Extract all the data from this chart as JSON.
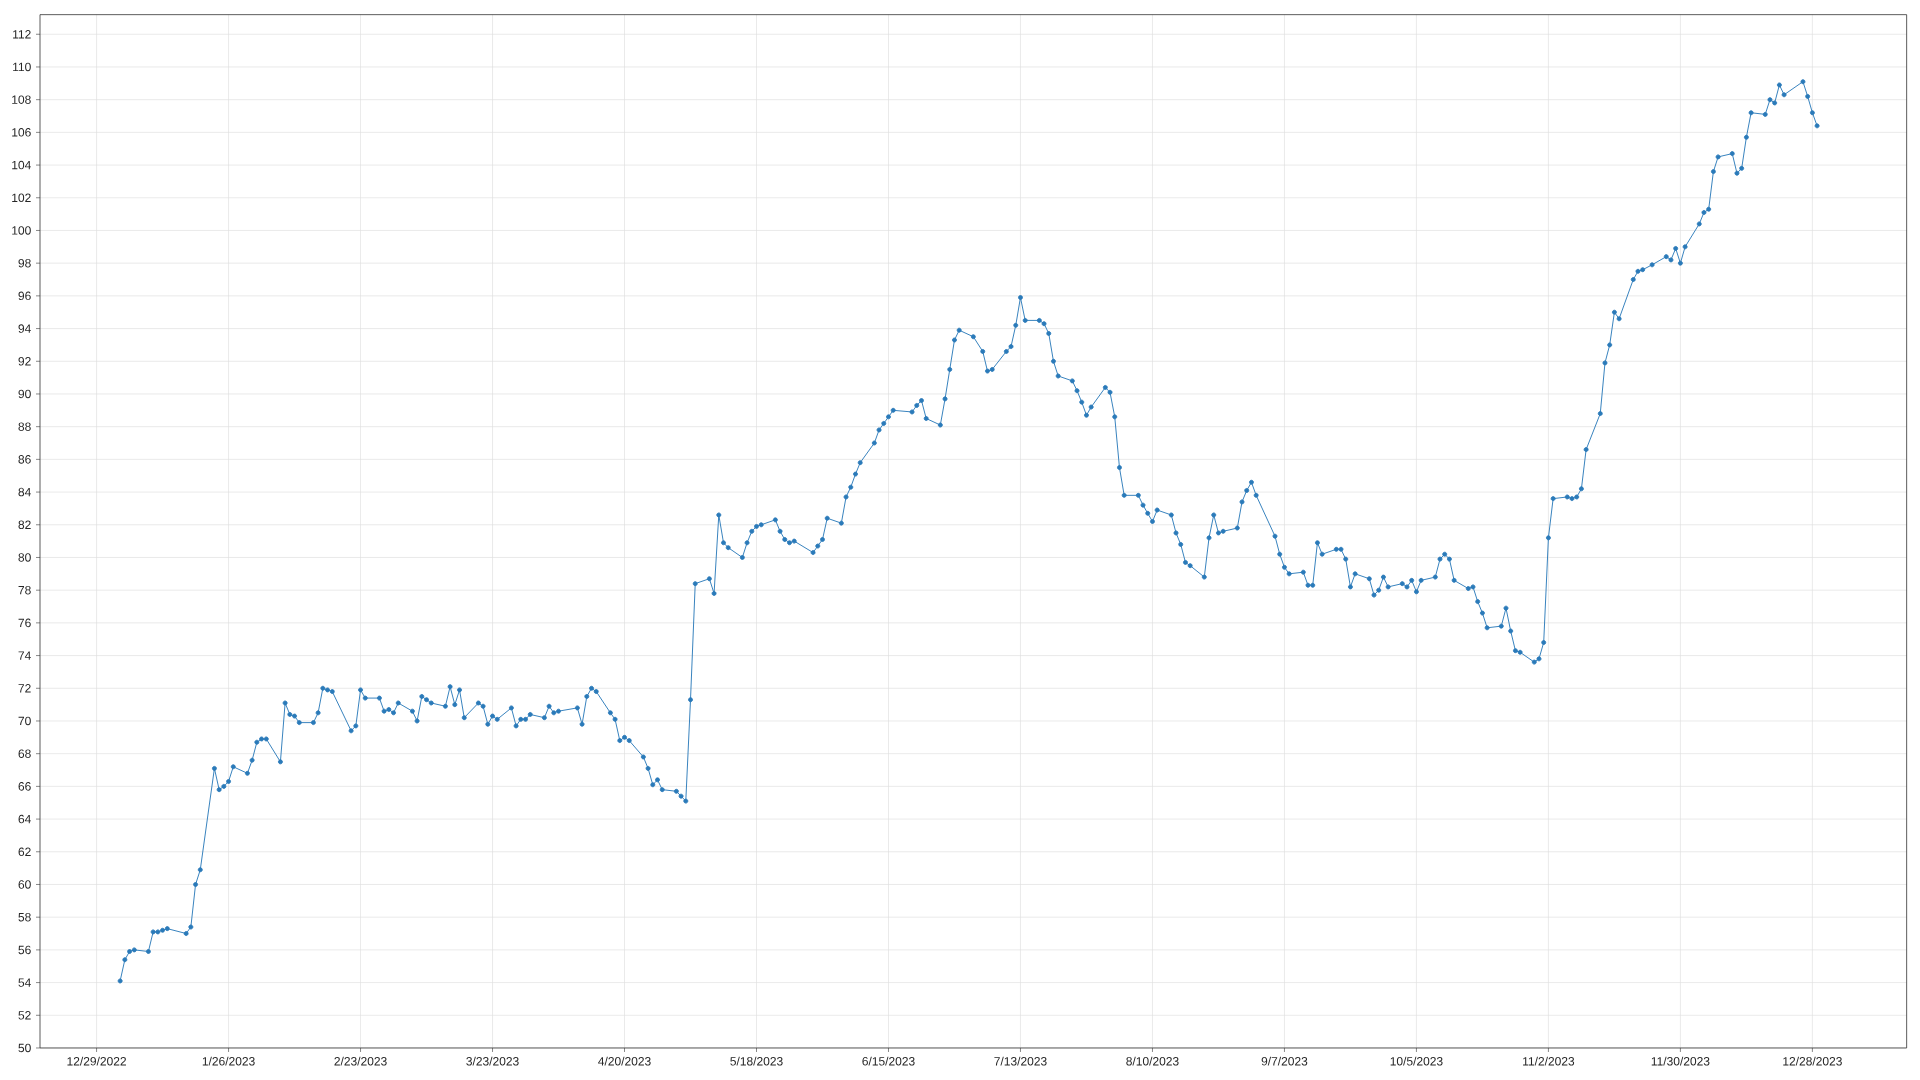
{
  "chart_data": {
    "type": "line",
    "x": [
      "2023-01-03",
      "2023-01-04",
      "2023-01-05",
      "2023-01-06",
      "2023-01-09",
      "2023-01-10",
      "2023-01-11",
      "2023-01-12",
      "2023-01-13",
      "2023-01-17",
      "2023-01-18",
      "2023-01-19",
      "2023-01-20",
      "2023-01-23",
      "2023-01-24",
      "2023-01-25",
      "2023-01-26",
      "2023-01-27",
      "2023-01-30",
      "2023-01-31",
      "2023-02-01",
      "2023-02-02",
      "2023-02-03",
      "2023-02-06",
      "2023-02-07",
      "2023-02-08",
      "2023-02-09",
      "2023-02-10",
      "2023-02-13",
      "2023-02-14",
      "2023-02-15",
      "2023-02-16",
      "2023-02-17",
      "2023-02-21",
      "2023-02-22",
      "2023-02-23",
      "2023-02-24",
      "2023-02-27",
      "2023-02-28",
      "2023-03-01",
      "2023-03-02",
      "2023-03-03",
      "2023-03-06",
      "2023-03-07",
      "2023-03-08",
      "2023-03-09",
      "2023-03-10",
      "2023-03-13",
      "2023-03-14",
      "2023-03-15",
      "2023-03-16",
      "2023-03-17",
      "2023-03-20",
      "2023-03-21",
      "2023-03-22",
      "2023-03-23",
      "2023-03-24",
      "2023-03-27",
      "2023-03-28",
      "2023-03-29",
      "2023-03-30",
      "2023-03-31",
      "2023-04-03",
      "2023-04-04",
      "2023-04-05",
      "2023-04-06",
      "2023-04-10",
      "2023-04-11",
      "2023-04-12",
      "2023-04-13",
      "2023-04-14",
      "2023-04-17",
      "2023-04-18",
      "2023-04-19",
      "2023-04-20",
      "2023-04-21",
      "2023-04-24",
      "2023-04-25",
      "2023-04-26",
      "2023-04-27",
      "2023-04-28",
      "2023-05-01",
      "2023-05-02",
      "2023-05-03",
      "2023-05-04",
      "2023-05-05",
      "2023-05-08",
      "2023-05-09",
      "2023-05-10",
      "2023-05-11",
      "2023-05-12",
      "2023-05-15",
      "2023-05-16",
      "2023-05-17",
      "2023-05-18",
      "2023-05-19",
      "2023-05-22",
      "2023-05-23",
      "2023-05-24",
      "2023-05-25",
      "2023-05-26",
      "2023-05-30",
      "2023-05-31",
      "2023-06-01",
      "2023-06-02",
      "2023-06-05",
      "2023-06-06",
      "2023-06-07",
      "2023-06-08",
      "2023-06-09",
      "2023-06-12",
      "2023-06-13",
      "2023-06-14",
      "2023-06-15",
      "2023-06-16",
      "2023-06-20",
      "2023-06-21",
      "2023-06-22",
      "2023-06-23",
      "2023-06-26",
      "2023-06-27",
      "2023-06-28",
      "2023-06-29",
      "2023-06-30",
      "2023-07-03",
      "2023-07-05",
      "2023-07-06",
      "2023-07-07",
      "2023-07-10",
      "2023-07-11",
      "2023-07-12",
      "2023-07-13",
      "2023-07-14",
      "2023-07-17",
      "2023-07-18",
      "2023-07-19",
      "2023-07-20",
      "2023-07-21",
      "2023-07-24",
      "2023-07-25",
      "2023-07-26",
      "2023-07-27",
      "2023-07-28",
      "2023-07-31",
      "2023-08-01",
      "2023-08-02",
      "2023-08-03",
      "2023-08-04",
      "2023-08-07",
      "2023-08-08",
      "2023-08-09",
      "2023-08-10",
      "2023-08-11",
      "2023-08-14",
      "2023-08-15",
      "2023-08-16",
      "2023-08-17",
      "2023-08-18",
      "2023-08-21",
      "2023-08-22",
      "2023-08-23",
      "2023-08-24",
      "2023-08-25",
      "2023-08-28",
      "2023-08-29",
      "2023-08-30",
      "2023-08-31",
      "2023-09-01",
      "2023-09-05",
      "2023-09-06",
      "2023-09-07",
      "2023-09-08",
      "2023-09-11",
      "2023-09-12",
      "2023-09-13",
      "2023-09-14",
      "2023-09-15",
      "2023-09-18",
      "2023-09-19",
      "2023-09-20",
      "2023-09-21",
      "2023-09-22",
      "2023-09-25",
      "2023-09-26",
      "2023-09-27",
      "2023-09-28",
      "2023-09-29",
      "2023-10-02",
      "2023-10-03",
      "2023-10-04",
      "2023-10-05",
      "2023-10-06",
      "2023-10-09",
      "2023-10-10",
      "2023-10-11",
      "2023-10-12",
      "2023-10-13",
      "2023-10-16",
      "2023-10-17",
      "2023-10-18",
      "2023-10-19",
      "2023-10-20",
      "2023-10-23",
      "2023-10-24",
      "2023-10-25",
      "2023-10-26",
      "2023-10-27",
      "2023-10-30",
      "2023-10-31",
      "2023-11-01",
      "2023-11-02",
      "2023-11-03",
      "2023-11-06",
      "2023-11-07",
      "2023-11-08",
      "2023-11-09",
      "2023-11-10",
      "2023-11-13",
      "2023-11-14",
      "2023-11-15",
      "2023-11-16",
      "2023-11-17",
      "2023-11-20",
      "2023-11-21",
      "2023-11-22",
      "2023-11-24",
      "2023-11-27",
      "2023-11-28",
      "2023-11-29",
      "2023-11-30",
      "2023-12-01",
      "2023-12-04",
      "2023-12-05",
      "2023-12-06",
      "2023-12-07",
      "2023-12-08",
      "2023-12-11",
      "2023-12-12",
      "2023-12-13",
      "2023-12-14",
      "2023-12-15",
      "2023-12-18",
      "2023-12-19",
      "2023-12-20",
      "2023-12-21",
      "2023-12-22",
      "2023-12-26",
      "2023-12-27",
      "2023-12-28",
      "2023-12-29"
    ],
    "values": [
      54.1,
      55.4,
      55.9,
      56.0,
      55.9,
      57.1,
      57.1,
      57.2,
      57.3,
      57.0,
      57.4,
      60.0,
      60.9,
      67.1,
      65.8,
      66.0,
      66.3,
      67.2,
      66.8,
      67.6,
      68.7,
      68.9,
      68.9,
      67.5,
      71.1,
      70.4,
      70.3,
      69.9,
      69.9,
      70.5,
      72.0,
      71.9,
      71.8,
      69.4,
      69.7,
      71.9,
      71.4,
      71.4,
      70.6,
      70.7,
      70.5,
      71.1,
      70.6,
      70.0,
      71.5,
      71.3,
      71.1,
      70.9,
      72.1,
      71.0,
      71.9,
      70.2,
      71.1,
      70.9,
      69.8,
      70.3,
      70.1,
      70.8,
      69.7,
      70.1,
      70.1,
      70.4,
      70.2,
      70.9,
      70.5,
      70.6,
      70.8,
      69.8,
      71.5,
      72.0,
      71.8,
      70.5,
      70.1,
      68.8,
      69.0,
      68.8,
      67.8,
      67.1,
      66.1,
      66.4,
      65.8,
      65.7,
      65.4,
      65.1,
      71.3,
      78.4,
      78.7,
      77.8,
      82.6,
      80.9,
      80.6,
      80.0,
      80.9,
      81.6,
      81.9,
      82.0,
      82.3,
      81.6,
      81.1,
      80.9,
      81.0,
      80.3,
      80.7,
      81.1,
      82.4,
      82.1,
      83.7,
      84.3,
      85.1,
      85.8,
      87.0,
      87.8,
      88.2,
      88.6,
      89.0,
      88.9,
      89.3,
      89.6,
      88.5,
      88.1,
      89.7,
      91.5,
      93.3,
      93.9,
      93.5,
      92.6,
      91.4,
      91.5,
      92.6,
      92.9,
      94.2,
      95.9,
      94.5,
      94.5,
      94.3,
      93.7,
      92.0,
      91.1,
      90.8,
      90.2,
      89.5,
      88.7,
      89.2,
      90.4,
      90.1,
      88.6,
      85.5,
      83.8,
      83.8,
      83.2,
      82.7,
      82.2,
      82.9,
      82.6,
      81.5,
      80.8,
      79.7,
      79.5,
      78.8,
      81.2,
      82.6,
      81.5,
      81.6,
      81.8,
      83.4,
      84.1,
      84.6,
      83.8,
      81.3,
      80.2,
      79.4,
      79.0,
      79.1,
      78.3,
      78.3,
      80.9,
      80.2,
      80.5,
      80.5,
      79.9,
      78.2,
      79.0,
      78.7,
      77.7,
      78.0,
      78.8,
      78.2,
      78.4,
      78.2,
      78.6,
      77.9,
      78.6,
      78.8,
      79.9,
      80.2,
      79.9,
      78.6,
      78.1,
      78.2,
      77.3,
      76.6,
      75.7,
      75.8,
      76.9,
      75.5,
      74.3,
      74.2,
      73.6,
      73.8,
      74.8,
      81.2,
      83.6,
      83.7,
      83.6,
      83.7,
      84.2,
      86.6,
      88.8,
      91.9,
      93.0,
      95.0,
      94.6,
      97.0,
      97.5,
      97.6,
      97.9,
      98.4,
      98.2,
      98.9,
      98.0,
      99.0,
      100.4,
      101.1,
      101.3,
      103.6,
      104.5,
      104.7,
      103.5,
      103.8,
      105.7,
      107.2,
      107.1,
      108.0,
      107.8,
      108.9,
      108.3,
      109.1,
      108.2,
      107.2,
      106.4
    ],
    "color": "#2a7ab9",
    "xlim": [
      "2022-12-17",
      "2024-01-17"
    ],
    "xticks": [
      {
        "value": "2022-12-29",
        "label": "12/29/2022"
      },
      {
        "value": "2023-01-26",
        "label": "1/26/2023"
      },
      {
        "value": "2023-02-23",
        "label": "2/23/2023"
      },
      {
        "value": "2023-03-23",
        "label": "3/23/2023"
      },
      {
        "value": "2023-04-20",
        "label": "4/20/2023"
      },
      {
        "value": "2023-05-18",
        "label": "5/18/2023"
      },
      {
        "value": "2023-06-15",
        "label": "6/15/2023"
      },
      {
        "value": "2023-07-13",
        "label": "7/13/2023"
      },
      {
        "value": "2023-08-10",
        "label": "8/10/2023"
      },
      {
        "value": "2023-09-07",
        "label": "9/7/2023"
      },
      {
        "value": "2023-10-05",
        "label": "10/5/2023"
      },
      {
        "value": "2023-11-02",
        "label": "11/2/2023"
      },
      {
        "value": "2023-11-30",
        "label": "11/30/2023"
      },
      {
        "value": "2023-12-28",
        "label": "12/28/2023"
      }
    ],
    "ylim": [
      50,
      113.2
    ],
    "yticks": [
      50,
      52,
      54,
      56,
      58,
      60,
      62,
      64,
      66,
      68,
      70,
      72,
      74,
      76,
      78,
      80,
      82,
      84,
      86,
      88,
      90,
      92,
      94,
      96,
      98,
      100,
      102,
      104,
      106,
      108,
      110,
      112
    ],
    "grid": true,
    "marker": "circle",
    "line_style": "solid"
  }
}
